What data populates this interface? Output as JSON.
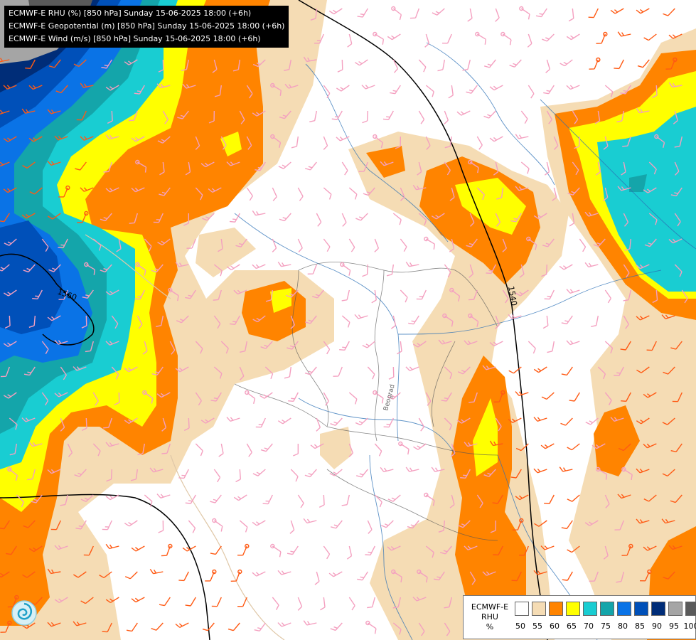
{
  "header": {
    "lines": [
      "ECMWF-E RHU (%) [850 hPa] Sunday 15-06-2025 18:00 (+6h)",
      "ECMWF-E Geopotential (m) [850 hPa] Sunday 15-06-2025 18:00 (+6h)",
      "ECMWF-E Wind (m/s) [850 hPa] Sunday 15-06-2025 18:00 (+6h)"
    ]
  },
  "map": {
    "contour_labels": [
      "1560",
      "1540"
    ],
    "city_label": "Beograd"
  },
  "legend": {
    "model_lines": [
      "ECMWF-E",
      "RHU",
      "%"
    ],
    "ticks": [
      "50",
      "55",
      "60",
      "65",
      "70",
      "75",
      "80",
      "85",
      "90",
      "95",
      "100"
    ],
    "colors": [
      "#ffffff",
      "#f5dcb4",
      "#ff8400",
      "#ffff00",
      "#19cdd2",
      "#14a5aa",
      "#0a73e6",
      "#0050b9",
      "#002d78",
      "#a5a5a5",
      "#5a5a5a"
    ]
  },
  "colors": {
    "wind_barb_low": "#f4a0c0",
    "wind_barb_high": "#ff5a14",
    "borders": "#555555",
    "rivers": "#2a6fb5",
    "coast": "#e0c8a8",
    "geopotential": "#000000"
  },
  "icons": {
    "logo": "swirl-logo-icon"
  }
}
